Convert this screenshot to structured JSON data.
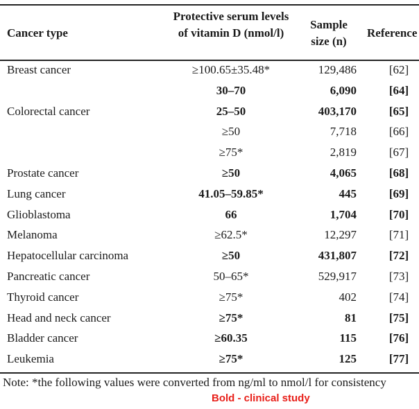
{
  "table": {
    "header": [
      "Cancer type",
      "Protective serum levels of vitamin D (nmol/l)",
      "Sample size (n)",
      "Reference"
    ],
    "rows": [
      {
        "cells": [
          "Breast cancer",
          "≥100.65±35.48*",
          "129,486",
          "[62]"
        ],
        "bold": false
      },
      {
        "cells": [
          null,
          "30–70",
          "6,090",
          "[64]"
        ],
        "bold": true
      },
      {
        "cells": [
          "Colorectal cancer",
          "25–50",
          "403,170",
          "[65]"
        ],
        "bold": true,
        "bold_first": false
      },
      {
        "cells": [
          null,
          "≥50",
          "7,718",
          "[66]"
        ],
        "bold": false
      },
      {
        "cells": [
          null,
          "≥75*",
          "2,819",
          "[67]"
        ],
        "bold": false
      },
      {
        "cells": [
          "Prostate cancer",
          "≥50",
          "4,065",
          "[68]"
        ],
        "bold": true,
        "bold_first": false
      },
      {
        "cells": [
          "Lung cancer",
          "41.05–59.85*",
          "445",
          "[69]"
        ],
        "bold": true,
        "bold_first": false
      },
      {
        "cells": [
          "Glioblastoma",
          "66",
          "1,704",
          "[70]"
        ],
        "bold": true,
        "bold_first": false
      },
      {
        "cells": [
          "Melanoma",
          "≥62.5*",
          "12,297",
          "[71]"
        ],
        "bold": false
      },
      {
        "cells": [
          "Hepatocellular carcinoma",
          "≥50",
          "431,807",
          "[72]"
        ],
        "bold": true,
        "bold_first": false
      },
      {
        "cells": [
          "Pancreatic cancer",
          "50–65*",
          "529,917",
          "[73]"
        ],
        "bold": false
      },
      {
        "cells": [
          "Thyroid cancer",
          "≥75*",
          "402",
          "[74]"
        ],
        "bold": false
      },
      {
        "cells": [
          "Head and neck cancer",
          "≥75*",
          "81",
          "[75]"
        ],
        "bold": true,
        "bold_first": false
      },
      {
        "cells": [
          "Bladder cancer",
          "≥60.35",
          "115",
          "[76]"
        ],
        "bold": true,
        "bold_first": false
      },
      {
        "cells": [
          "Leukemia",
          "≥75*",
          "125",
          "[77]"
        ],
        "bold": true,
        "bold_first": false
      }
    ]
  },
  "note": "Note: *the following values were converted from ng/ml to nmol/l for consistency",
  "legend": {
    "text": "Bold - clinical study",
    "color": "#e8201a"
  }
}
